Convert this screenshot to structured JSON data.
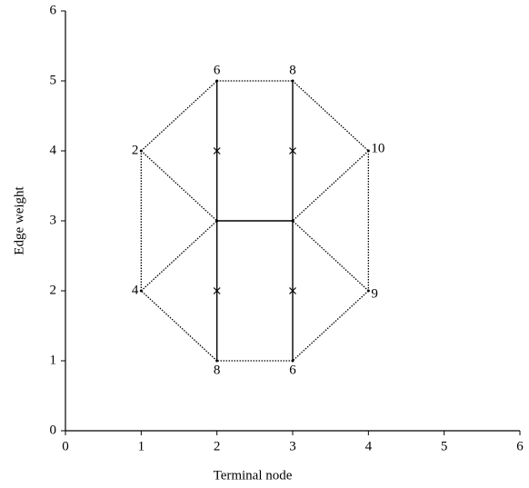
{
  "chart_data": {
    "type": "graph",
    "x_label": "Terminal node",
    "y_label": "Edge weight",
    "xlim": [
      0,
      6
    ],
    "ylim": [
      0,
      6
    ],
    "xticks": [
      0,
      1,
      2,
      3,
      4,
      5,
      6
    ],
    "yticks": [
      0,
      1,
      2,
      3,
      4,
      5,
      6
    ],
    "grid": false,
    "nodes": [
      {
        "label": "2",
        "x": 1,
        "y": 4
      },
      {
        "label": "4",
        "x": 1,
        "y": 2
      },
      {
        "label": "6",
        "x": 2,
        "y": 5
      },
      {
        "label": "8",
        "x": 3,
        "y": 5
      },
      {
        "label": "10",
        "x": 4,
        "y": 4
      },
      {
        "label": "9",
        "x": 4,
        "y": 2
      },
      {
        "label": "8",
        "x": 2,
        "y": 1
      },
      {
        "label": "6",
        "x": 3,
        "y": 1
      },
      {
        "label": null,
        "x": 2,
        "y": 3
      },
      {
        "label": null,
        "x": 3,
        "y": 3
      }
    ],
    "edges": [
      {
        "from": 0,
        "to": 2,
        "style": "dotted"
      },
      {
        "from": 2,
        "to": 3,
        "style": "dotted"
      },
      {
        "from": 3,
        "to": 4,
        "style": "dotted"
      },
      {
        "from": 4,
        "to": 5,
        "style": "dotted"
      },
      {
        "from": 5,
        "to": 7,
        "style": "dotted"
      },
      {
        "from": 7,
        "to": 6,
        "style": "dotted"
      },
      {
        "from": 6,
        "to": 1,
        "style": "dotted"
      },
      {
        "from": 1,
        "to": 0,
        "style": "dotted"
      },
      {
        "from": 0,
        "to": 8,
        "style": "dotted"
      },
      {
        "from": 1,
        "to": 8,
        "style": "dotted"
      },
      {
        "from": 4,
        "to": 9,
        "style": "dotted"
      },
      {
        "from": 5,
        "to": 9,
        "style": "dotted"
      },
      {
        "from": 2,
        "to": 6,
        "style": "solid"
      },
      {
        "from": 3,
        "to": 7,
        "style": "solid"
      },
      {
        "from": 8,
        "to": 9,
        "style": "solid"
      }
    ],
    "markers": {
      "x": [
        2,
        3,
        2,
        3
      ],
      "y": [
        4,
        4,
        2,
        2
      ]
    }
  }
}
